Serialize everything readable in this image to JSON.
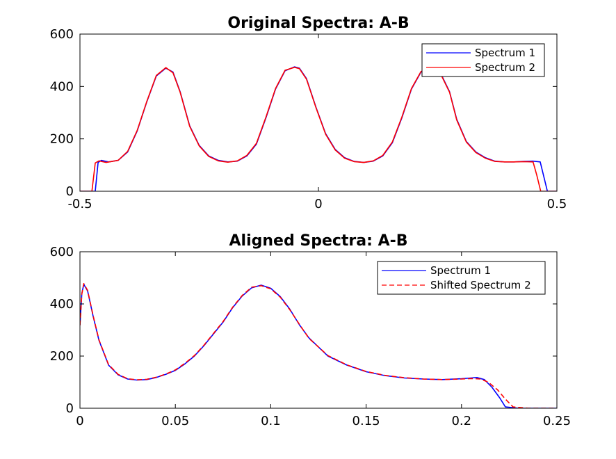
{
  "chart_data": [
    {
      "type": "line",
      "title": "Original Spectra: A-B",
      "xlabel": "",
      "ylabel": "",
      "xlim": [
        -0.5,
        0.5
      ],
      "ylim": [
        0,
        600
      ],
      "xticks": [
        -0.5,
        0,
        0.5
      ],
      "xtick_labels": [
        "-0.5",
        "0",
        "0.5"
      ],
      "yticks": [
        0,
        200,
        400,
        600
      ],
      "ytick_labels": [
        "0",
        "200",
        "400",
        "600"
      ],
      "grid": false,
      "legend_position": "top-right",
      "series": [
        {
          "name": "Spectrum 1",
          "color": "#0000ff",
          "style": "solid",
          "x": [
            -0.5,
            -0.468,
            -0.462,
            -0.455,
            -0.44,
            -0.42,
            -0.4,
            -0.38,
            -0.36,
            -0.34,
            -0.32,
            -0.305,
            -0.29,
            -0.27,
            -0.25,
            -0.23,
            -0.21,
            -0.19,
            -0.17,
            -0.15,
            -0.13,
            -0.11,
            -0.09,
            -0.07,
            -0.05,
            -0.04,
            -0.025,
            -0.005,
            0.015,
            0.035,
            0.055,
            0.075,
            0.095,
            0.115,
            0.135,
            0.155,
            0.175,
            0.195,
            0.215,
            0.235,
            0.255,
            0.275,
            0.29,
            0.31,
            0.33,
            0.35,
            0.37,
            0.39,
            0.41,
            0.43,
            0.45,
            0.465,
            0.472,
            0.48,
            0.5
          ],
          "y": [
            0,
            0,
            110,
            118,
            112,
            118,
            150,
            230,
            340,
            440,
            470,
            455,
            380,
            250,
            175,
            135,
            118,
            112,
            115,
            135,
            180,
            280,
            390,
            460,
            475,
            470,
            430,
            320,
            220,
            160,
            128,
            114,
            110,
            115,
            135,
            185,
            280,
            390,
            455,
            470,
            455,
            380,
            275,
            190,
            150,
            128,
            115,
            112,
            112,
            114,
            115,
            112,
            60,
            0,
            0
          ]
        },
        {
          "name": "Spectrum 2",
          "color": "#ff0000",
          "style": "solid",
          "x": [
            -0.5,
            -0.475,
            -0.468,
            -0.46,
            -0.445,
            -0.42,
            -0.4,
            -0.38,
            -0.36,
            -0.34,
            -0.32,
            -0.305,
            -0.29,
            -0.27,
            -0.25,
            -0.23,
            -0.21,
            -0.19,
            -0.17,
            -0.15,
            -0.13,
            -0.11,
            -0.09,
            -0.07,
            -0.05,
            -0.04,
            -0.025,
            -0.005,
            0.015,
            0.035,
            0.055,
            0.075,
            0.095,
            0.115,
            0.135,
            0.155,
            0.175,
            0.195,
            0.215,
            0.235,
            0.255,
            0.275,
            0.29,
            0.31,
            0.33,
            0.35,
            0.37,
            0.39,
            0.41,
            0.43,
            0.45,
            0.458,
            0.466,
            0.5
          ],
          "y": [
            0,
            0,
            108,
            116,
            110,
            118,
            152,
            232,
            342,
            442,
            472,
            452,
            378,
            248,
            173,
            133,
            116,
            111,
            116,
            137,
            183,
            283,
            392,
            462,
            473,
            468,
            428,
            318,
            218,
            158,
            126,
            113,
            110,
            116,
            137,
            188,
            283,
            392,
            457,
            472,
            452,
            378,
            272,
            188,
            148,
            126,
            114,
            112,
            112,
            113,
            112,
            60,
            0,
            0
          ]
        }
      ]
    },
    {
      "type": "line",
      "title": "Aligned Spectra: A-B",
      "xlabel": "",
      "ylabel": "",
      "xlim": [
        0,
        0.25
      ],
      "ylim": [
        0,
        600
      ],
      "xticks": [
        0,
        0.05,
        0.1,
        0.15,
        0.2,
        0.25
      ],
      "xtick_labels": [
        "0",
        "0.05",
        "0.1",
        "0.15",
        "0.2",
        "0.25"
      ],
      "yticks": [
        0,
        200,
        400,
        600
      ],
      "ytick_labels": [
        "0",
        "200",
        "400",
        "600"
      ],
      "grid": false,
      "legend_position": "top-right",
      "series": [
        {
          "name": "Spectrum 1",
          "color": "#0000ff",
          "style": "solid",
          "x": [
            0,
            0.001,
            0.002,
            0.004,
            0.007,
            0.01,
            0.015,
            0.02,
            0.025,
            0.03,
            0.035,
            0.04,
            0.045,
            0.05,
            0.055,
            0.06,
            0.065,
            0.07,
            0.075,
            0.08,
            0.085,
            0.09,
            0.095,
            0.1,
            0.105,
            0.11,
            0.115,
            0.12,
            0.13,
            0.14,
            0.15,
            0.16,
            0.17,
            0.18,
            0.19,
            0.2,
            0.205,
            0.208,
            0.212,
            0.216,
            0.22,
            0.223,
            0.23,
            0.25
          ],
          "y": [
            320,
            440,
            475,
            450,
            350,
            260,
            165,
            128,
            112,
            108,
            110,
            118,
            130,
            145,
            170,
            200,
            240,
            285,
            330,
            385,
            430,
            462,
            472,
            460,
            428,
            380,
            320,
            270,
            200,
            165,
            140,
            125,
            116,
            112,
            110,
            113,
            116,
            118,
            110,
            80,
            40,
            5,
            0,
            0
          ]
        },
        {
          "name": "Shifted Spectrum 2",
          "color": "#ff0000",
          "style": "dashed",
          "x": [
            0,
            0.001,
            0.002,
            0.004,
            0.007,
            0.01,
            0.015,
            0.02,
            0.025,
            0.03,
            0.035,
            0.04,
            0.045,
            0.05,
            0.055,
            0.06,
            0.065,
            0.07,
            0.075,
            0.08,
            0.085,
            0.09,
            0.095,
            0.1,
            0.105,
            0.11,
            0.115,
            0.12,
            0.13,
            0.14,
            0.15,
            0.16,
            0.17,
            0.18,
            0.19,
            0.2,
            0.205,
            0.21,
            0.214,
            0.219,
            0.223,
            0.227,
            0.235,
            0.25
          ],
          "y": [
            318,
            438,
            478,
            452,
            352,
            262,
            167,
            130,
            113,
            109,
            111,
            119,
            131,
            147,
            172,
            202,
            242,
            287,
            332,
            387,
            432,
            464,
            470,
            458,
            426,
            378,
            322,
            268,
            202,
            166,
            141,
            126,
            117,
            112,
            110,
            112,
            114,
            112,
            100,
            70,
            35,
            5,
            0,
            0
          ]
        }
      ]
    }
  ]
}
